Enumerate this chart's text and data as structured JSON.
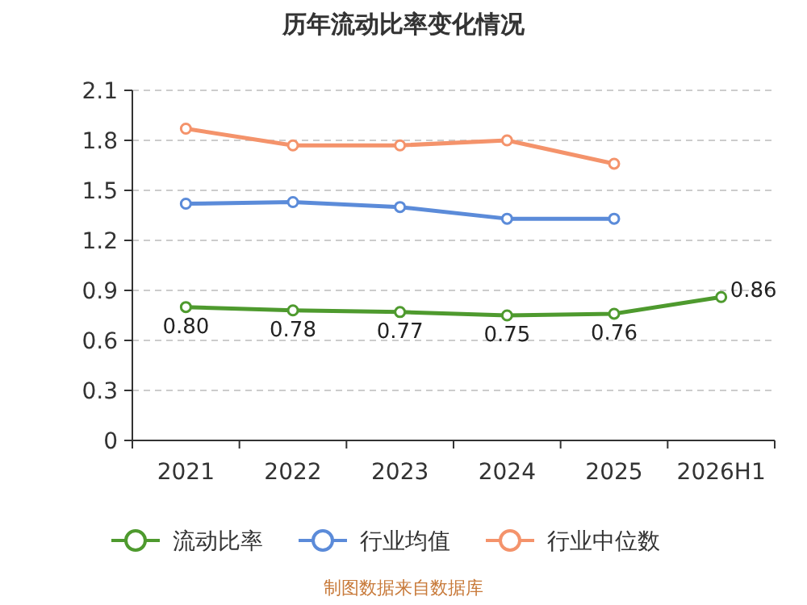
{
  "chart_data": {
    "type": "line",
    "title": "历年流动比率变化情况",
    "categories": [
      "2021",
      "2022",
      "2023",
      "2024",
      "2025",
      "2026H1"
    ],
    "series": [
      {
        "name": "流动比率",
        "color": "#4e9a2e",
        "values": [
          0.8,
          0.78,
          0.77,
          0.75,
          0.76,
          0.86
        ],
        "value_labels": [
          "0.80",
          "0.78",
          "0.77",
          "0.75",
          "0.76",
          "0.86"
        ]
      },
      {
        "name": "行业均值",
        "color": "#5b8bd9",
        "values": [
          1.42,
          1.43,
          1.4,
          1.33,
          1.33,
          null
        ]
      },
      {
        "name": "行业中位数",
        "color": "#f4936b",
        "values": [
          1.87,
          1.77,
          1.77,
          1.8,
          1.66,
          null
        ]
      }
    ],
    "ylim": [
      0,
      2.1
    ],
    "yticks": [
      0,
      0.3,
      0.6,
      0.9,
      1.2,
      1.5,
      1.8,
      2.1
    ],
    "grid": "y",
    "legend": "bottom",
    "marker": "circle",
    "line_style": "solid",
    "annotations": [
      "制图数据来自数据库"
    ]
  }
}
